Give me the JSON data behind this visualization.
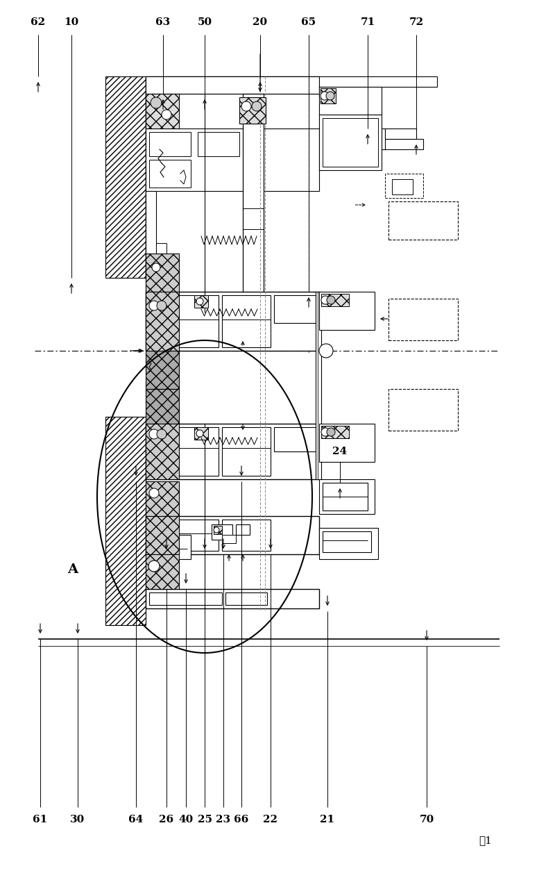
{
  "figsize": [
    8.0,
    12.54
  ],
  "dpi": 100,
  "bg": "#ffffff",
  "figure_label": "图1",
  "top_labels": [
    [
      "62",
      55
    ],
    [
      "10",
      103
    ],
    [
      "63",
      235
    ],
    [
      "50",
      295
    ],
    [
      "20",
      375
    ],
    [
      "65",
      445
    ],
    [
      "71",
      530
    ],
    [
      "72",
      600
    ]
  ],
  "bottom_labels": [
    [
      "61",
      58
    ],
    [
      "30",
      112
    ],
    [
      "64",
      196
    ],
    [
      "26",
      240
    ],
    [
      "40",
      268
    ],
    [
      "25",
      295
    ],
    [
      "23",
      322
    ],
    [
      "66",
      348
    ],
    [
      "22",
      390
    ],
    [
      "21",
      472
    ],
    [
      "70",
      615
    ]
  ],
  "side_labels": [
    [
      "24",
      490,
      695
    ],
    [
      "A",
      105,
      820
    ]
  ]
}
